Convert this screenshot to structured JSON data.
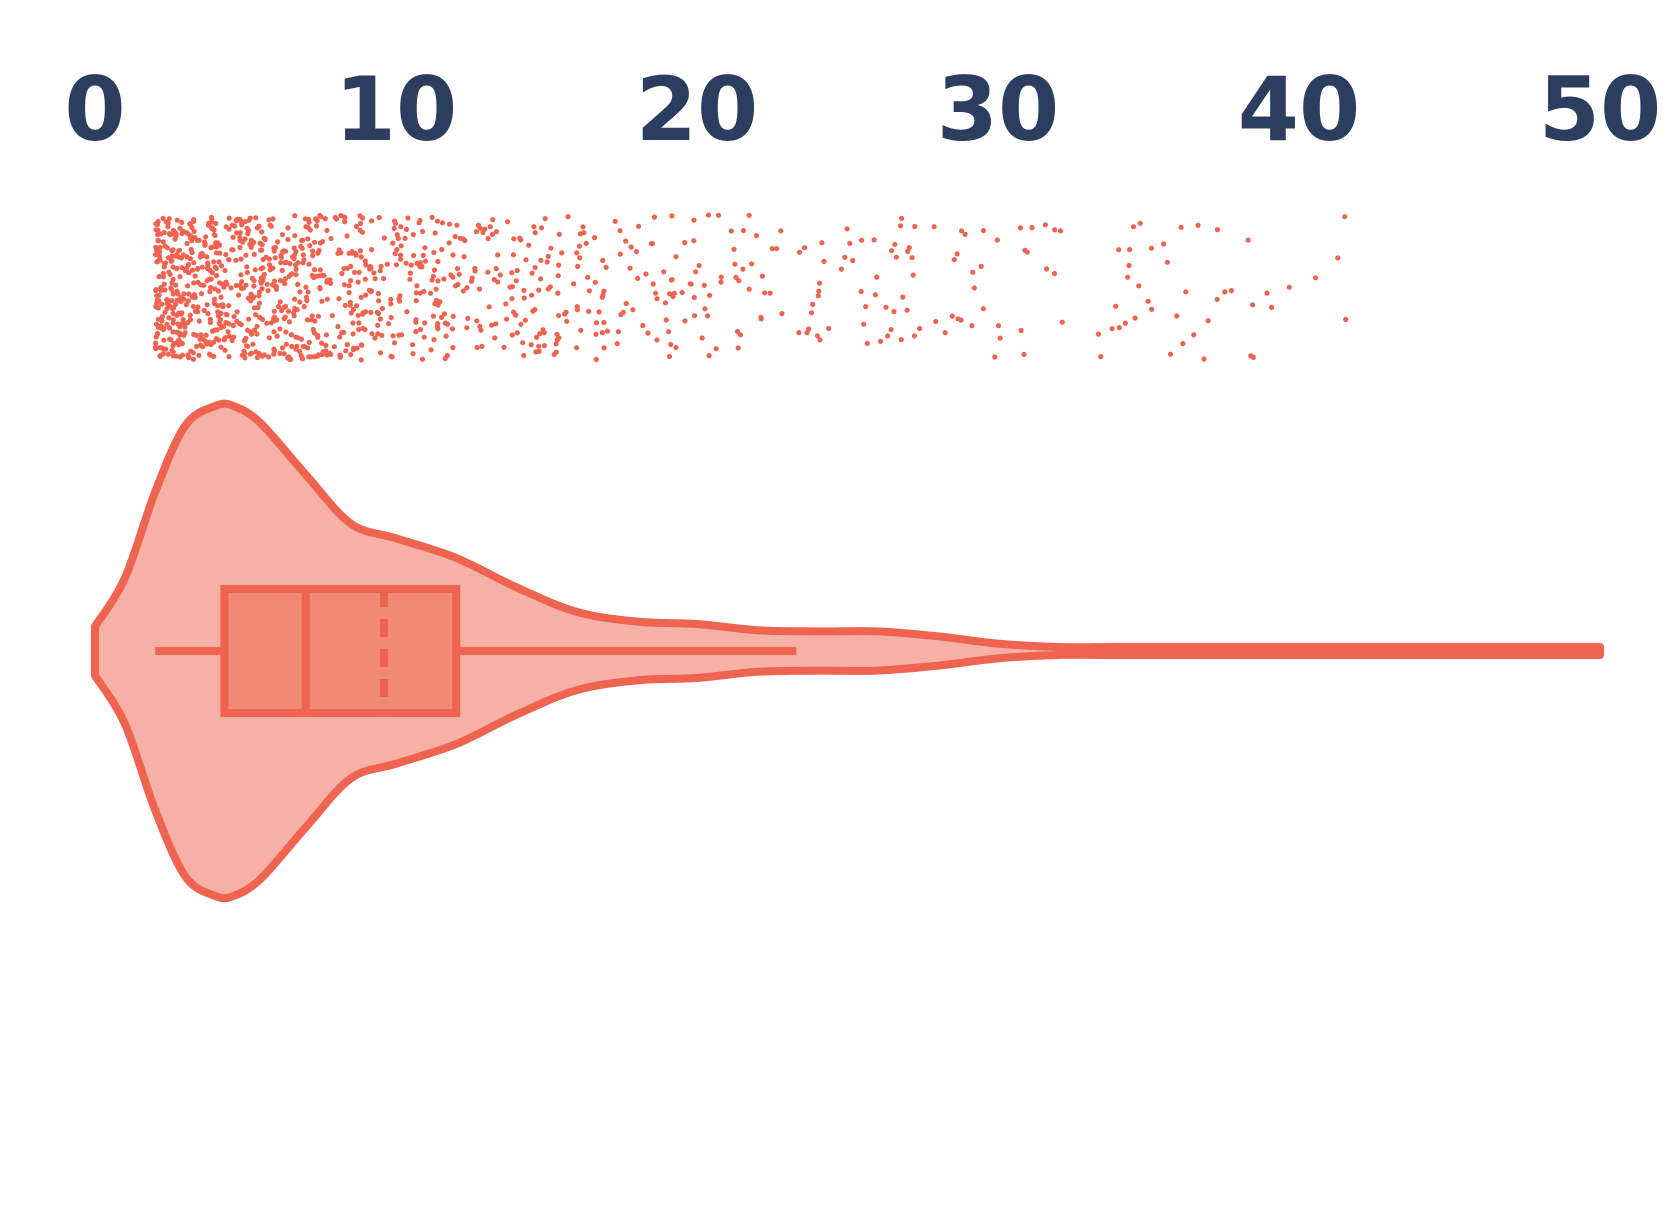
{
  "chart_data": {
    "type": "violin",
    "orientation": "horizontal",
    "title": "",
    "xlabel": "",
    "ylabel": "",
    "xlim": [
      0,
      50
    ],
    "x_ticks": [
      "0",
      "10",
      "20",
      "30",
      "40",
      "50"
    ],
    "x_tick_values": [
      0,
      10,
      20,
      30,
      40,
      50
    ],
    "x_axis_position": "top",
    "grid": false,
    "legend": "none",
    "box": {
      "whisker_low": 2,
      "q1": 4.3,
      "median": 7,
      "mean": 9.6,
      "q3": 12,
      "whisker_high": 23.3
    },
    "density_profile": {
      "x": [
        0,
        1,
        2,
        3,
        4,
        4.6,
        5.5,
        7,
        8.5,
        10,
        12,
        14,
        16,
        18,
        20,
        22,
        24,
        26,
        28,
        30,
        32,
        34,
        37,
        40,
        45,
        50
      ],
      "relative_density": [
        0.1,
        0.3,
        0.65,
        0.92,
        1.0,
        1.0,
        0.93,
        0.72,
        0.52,
        0.46,
        0.38,
        0.26,
        0.16,
        0.12,
        0.11,
        0.085,
        0.08,
        0.08,
        0.06,
        0.03,
        0.012,
        0.008,
        0.011,
        0.006,
        0.004,
        0.004
      ]
    },
    "points_summary": {
      "count": 1200,
      "range": [
        2,
        49.5
      ],
      "shape": "right-skewed, concentrated between 2 and 15"
    },
    "colors": {
      "accent": "#ef6351",
      "violin_fill": "#f6b0a6",
      "box_fill": "#f28876",
      "tick_text": "#2c3e60"
    }
  }
}
